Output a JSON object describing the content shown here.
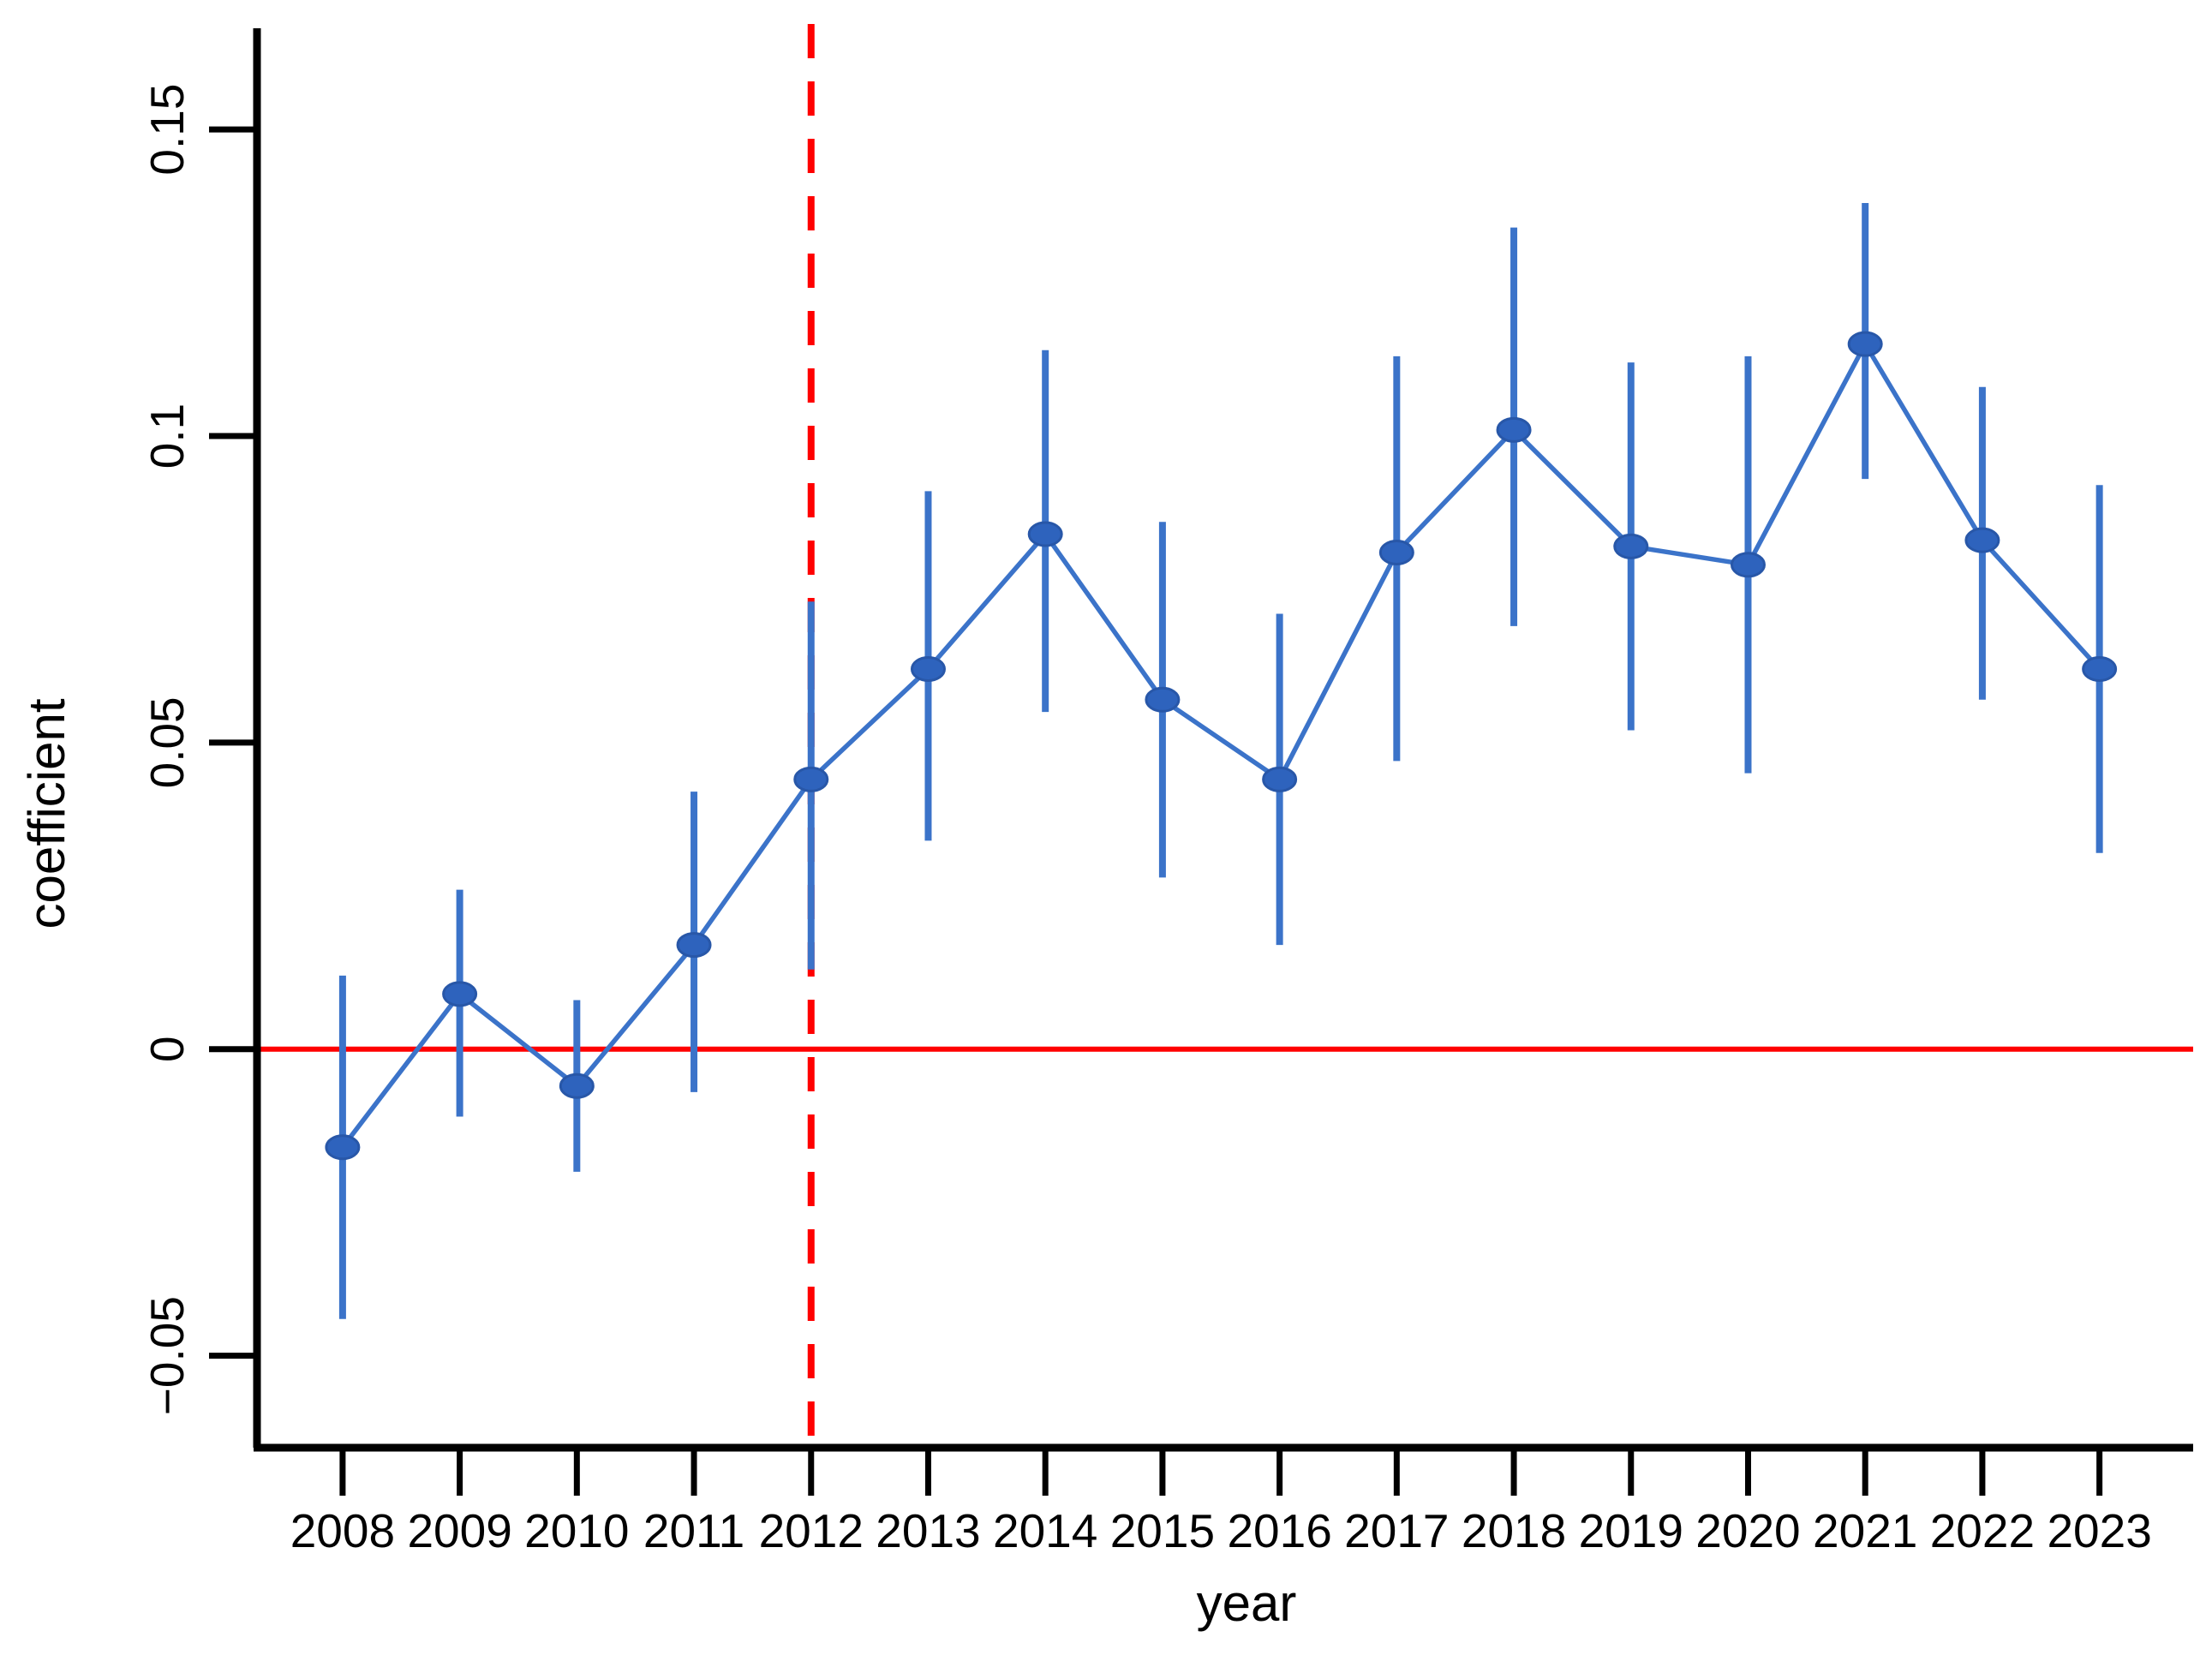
{
  "chart_data": {
    "type": "line",
    "title": "",
    "xlabel": "year",
    "ylabel": "coefficient",
    "x": [
      2008,
      2009,
      2010,
      2011,
      2012,
      2013,
      2014,
      2015,
      2016,
      2017,
      2018,
      2019,
      2020,
      2021,
      2022,
      2023
    ],
    "series": [
      {
        "name": "coefficient",
        "values": [
          -0.016,
          0.009,
          -0.006,
          0.017,
          0.044,
          0.062,
          0.084,
          0.057,
          0.044,
          0.081,
          0.101,
          0.082,
          0.079,
          0.115,
          0.083,
          0.062
        ],
        "ci_low": [
          -0.044,
          -0.011,
          -0.02,
          -0.007,
          0.013,
          0.034,
          0.055,
          0.028,
          0.017,
          0.047,
          0.069,
          0.052,
          0.045,
          0.093,
          0.057,
          0.032
        ],
        "ci_high": [
          0.012,
          0.026,
          0.008,
          0.042,
          0.073,
          0.091,
          0.114,
          0.086,
          0.071,
          0.113,
          0.134,
          0.112,
          0.113,
          0.138,
          0.108,
          0.092
        ]
      }
    ],
    "xticks": {
      "values": [
        2008,
        2009,
        2010,
        2011,
        2012,
        2013,
        2014,
        2015,
        2016,
        2017,
        2018,
        2019,
        2020,
        2021,
        2022,
        2023
      ],
      "labels": [
        "2008",
        "2009",
        "2010",
        "2011",
        "2012",
        "2013",
        "2014",
        "2015",
        "2016",
        "2017",
        "2018",
        "2019",
        "2020",
        "2021",
        "2022",
        "2023"
      ]
    },
    "yticks": {
      "values": [
        0.15,
        0.1,
        0.05,
        0,
        -0.05
      ],
      "labels": [
        "0.15",
        "0.1",
        "0.05",
        "0",
        "−0.05"
      ]
    },
    "xlim": [
      2007.24,
      2023.8
    ],
    "ylim": [
      -0.065,
      0.1665
    ],
    "grid": false,
    "legend": null,
    "reference_lines": {
      "hline_y": 0,
      "vline_x": 2012,
      "vline_style": "dashed",
      "hline_style": "solid"
    },
    "colors": {
      "series_line": "#3B73C9",
      "error_bar": "#3B73C9",
      "marker_fill": "#2E63BD",
      "marker_stroke": "#2857A8",
      "reference": "#FF0000",
      "axis": "#000000",
      "tick_label": "#000000"
    }
  }
}
